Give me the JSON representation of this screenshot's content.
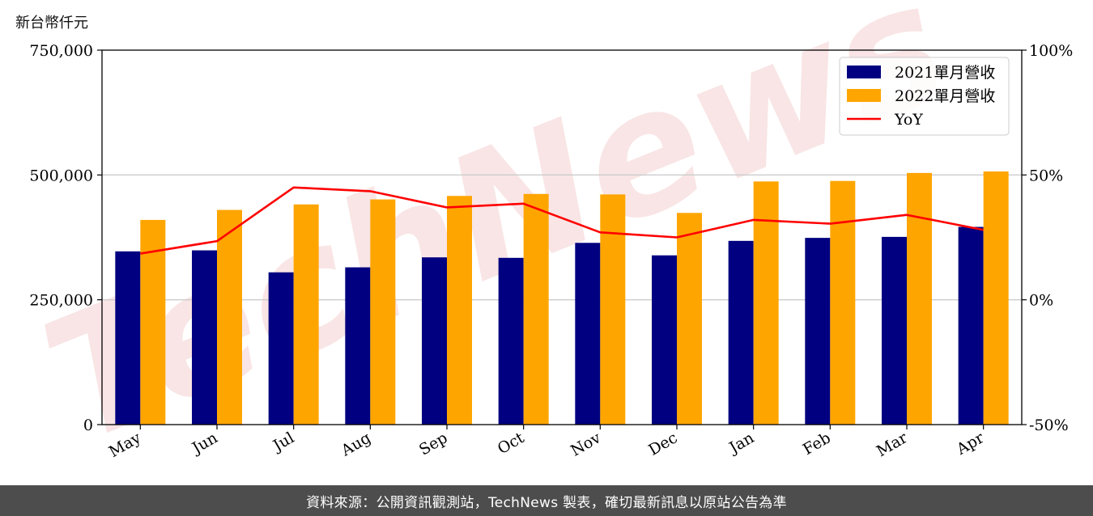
{
  "unit_label": "新台幣仟元",
  "footer_text": "資料來源：公開資訊觀測站，TechNews 製表，確切最新訊息以原站公告為準",
  "watermark_text": "TechNews",
  "colors": {
    "series_2021": "#000080",
    "series_2022": "#ffa500",
    "yoy": "#ff0000",
    "grid": "#cccccc",
    "watermark": "#e8a0a0",
    "footer_bg": "#4d4d4d"
  },
  "chart_data": {
    "type": "bar",
    "categories": [
      "May",
      "Jun",
      "Jul",
      "Aug",
      "Sep",
      "Oct",
      "Nov",
      "Dec",
      "Jan",
      "Feb",
      "Mar",
      "Apr"
    ],
    "series": [
      {
        "name": "2021單月營收",
        "axis": "left",
        "values": [
          347000,
          349000,
          305000,
          315000,
          335000,
          334000,
          364000,
          339000,
          368000,
          374000,
          376000,
          396000
        ]
      },
      {
        "name": "2022單月營收",
        "axis": "left",
        "values": [
          410000,
          430000,
          441000,
          451000,
          458000,
          462000,
          461000,
          424000,
          487000,
          488000,
          504000,
          507000
        ]
      }
    ],
    "line_series": [
      {
        "name": "YoY",
        "axis": "right",
        "values": [
          18.5,
          23.5,
          45.0,
          43.5,
          37.0,
          38.5,
          27.0,
          25.0,
          32.0,
          30.5,
          34.0,
          28.0
        ]
      }
    ],
    "y_left": {
      "min": 0,
      "max": 750000,
      "ticks": [
        "0",
        "250,000",
        "500,000",
        "750,000"
      ],
      "tick_values": [
        0,
        250000,
        500000,
        750000
      ]
    },
    "y_right": {
      "min": -50,
      "max": 100,
      "ticks": [
        "-50%",
        "0%",
        "50%",
        "100%"
      ],
      "tick_values": [
        -50,
        0,
        50,
        100
      ]
    },
    "grid": "horizontal",
    "legend_position": "top-right"
  }
}
